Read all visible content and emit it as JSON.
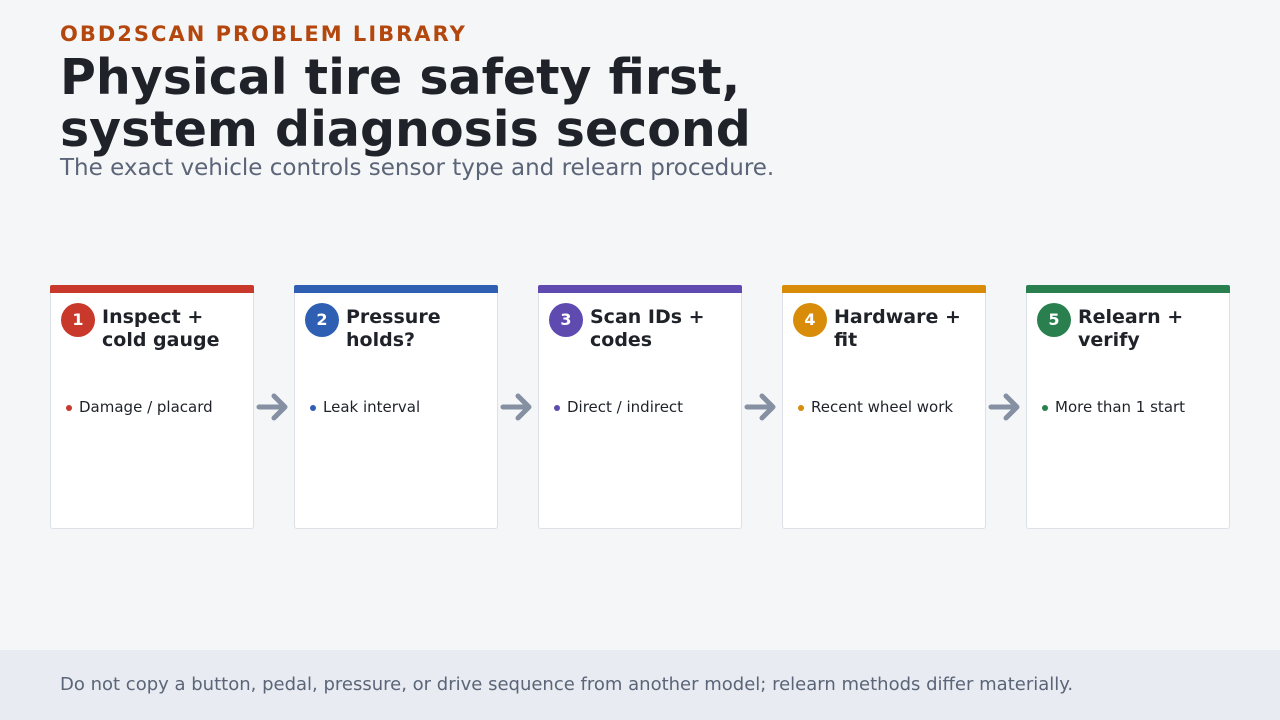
{
  "header": {
    "kicker": "OBD2SCAN PROBLEM LIBRARY",
    "title_line1": "Physical tire safety first,",
    "title_line2": "system diagnosis second",
    "subtitle": "The exact vehicle controls sensor type and relearn procedure."
  },
  "steps": [
    {
      "number": "1",
      "title_line1": "Inspect +",
      "title_line2": "cold gauge",
      "bullet": "Damage / placard",
      "color": "#c8392b"
    },
    {
      "number": "2",
      "title_line1": "Pressure",
      "title_line2": "holds?",
      "bullet": "Leak interval",
      "color": "#2f5fb3"
    },
    {
      "number": "3",
      "title_line1": "Scan IDs +",
      "title_line2": "codes",
      "bullet": "Direct / indirect",
      "color": "#5f4bb0"
    },
    {
      "number": "4",
      "title_line1": "Hardware +",
      "title_line2": "fit",
      "bullet": "Recent wheel work",
      "color": "#d98c0a"
    },
    {
      "number": "5",
      "title_line1": "Relearn +",
      "title_line2": "verify",
      "bullet": "More than 1 start",
      "color": "#2a7f4f"
    }
  ],
  "footer": {
    "note": "Do not copy a button, pedal, pressure, or drive sequence from another model; relearn methods differ materially."
  }
}
